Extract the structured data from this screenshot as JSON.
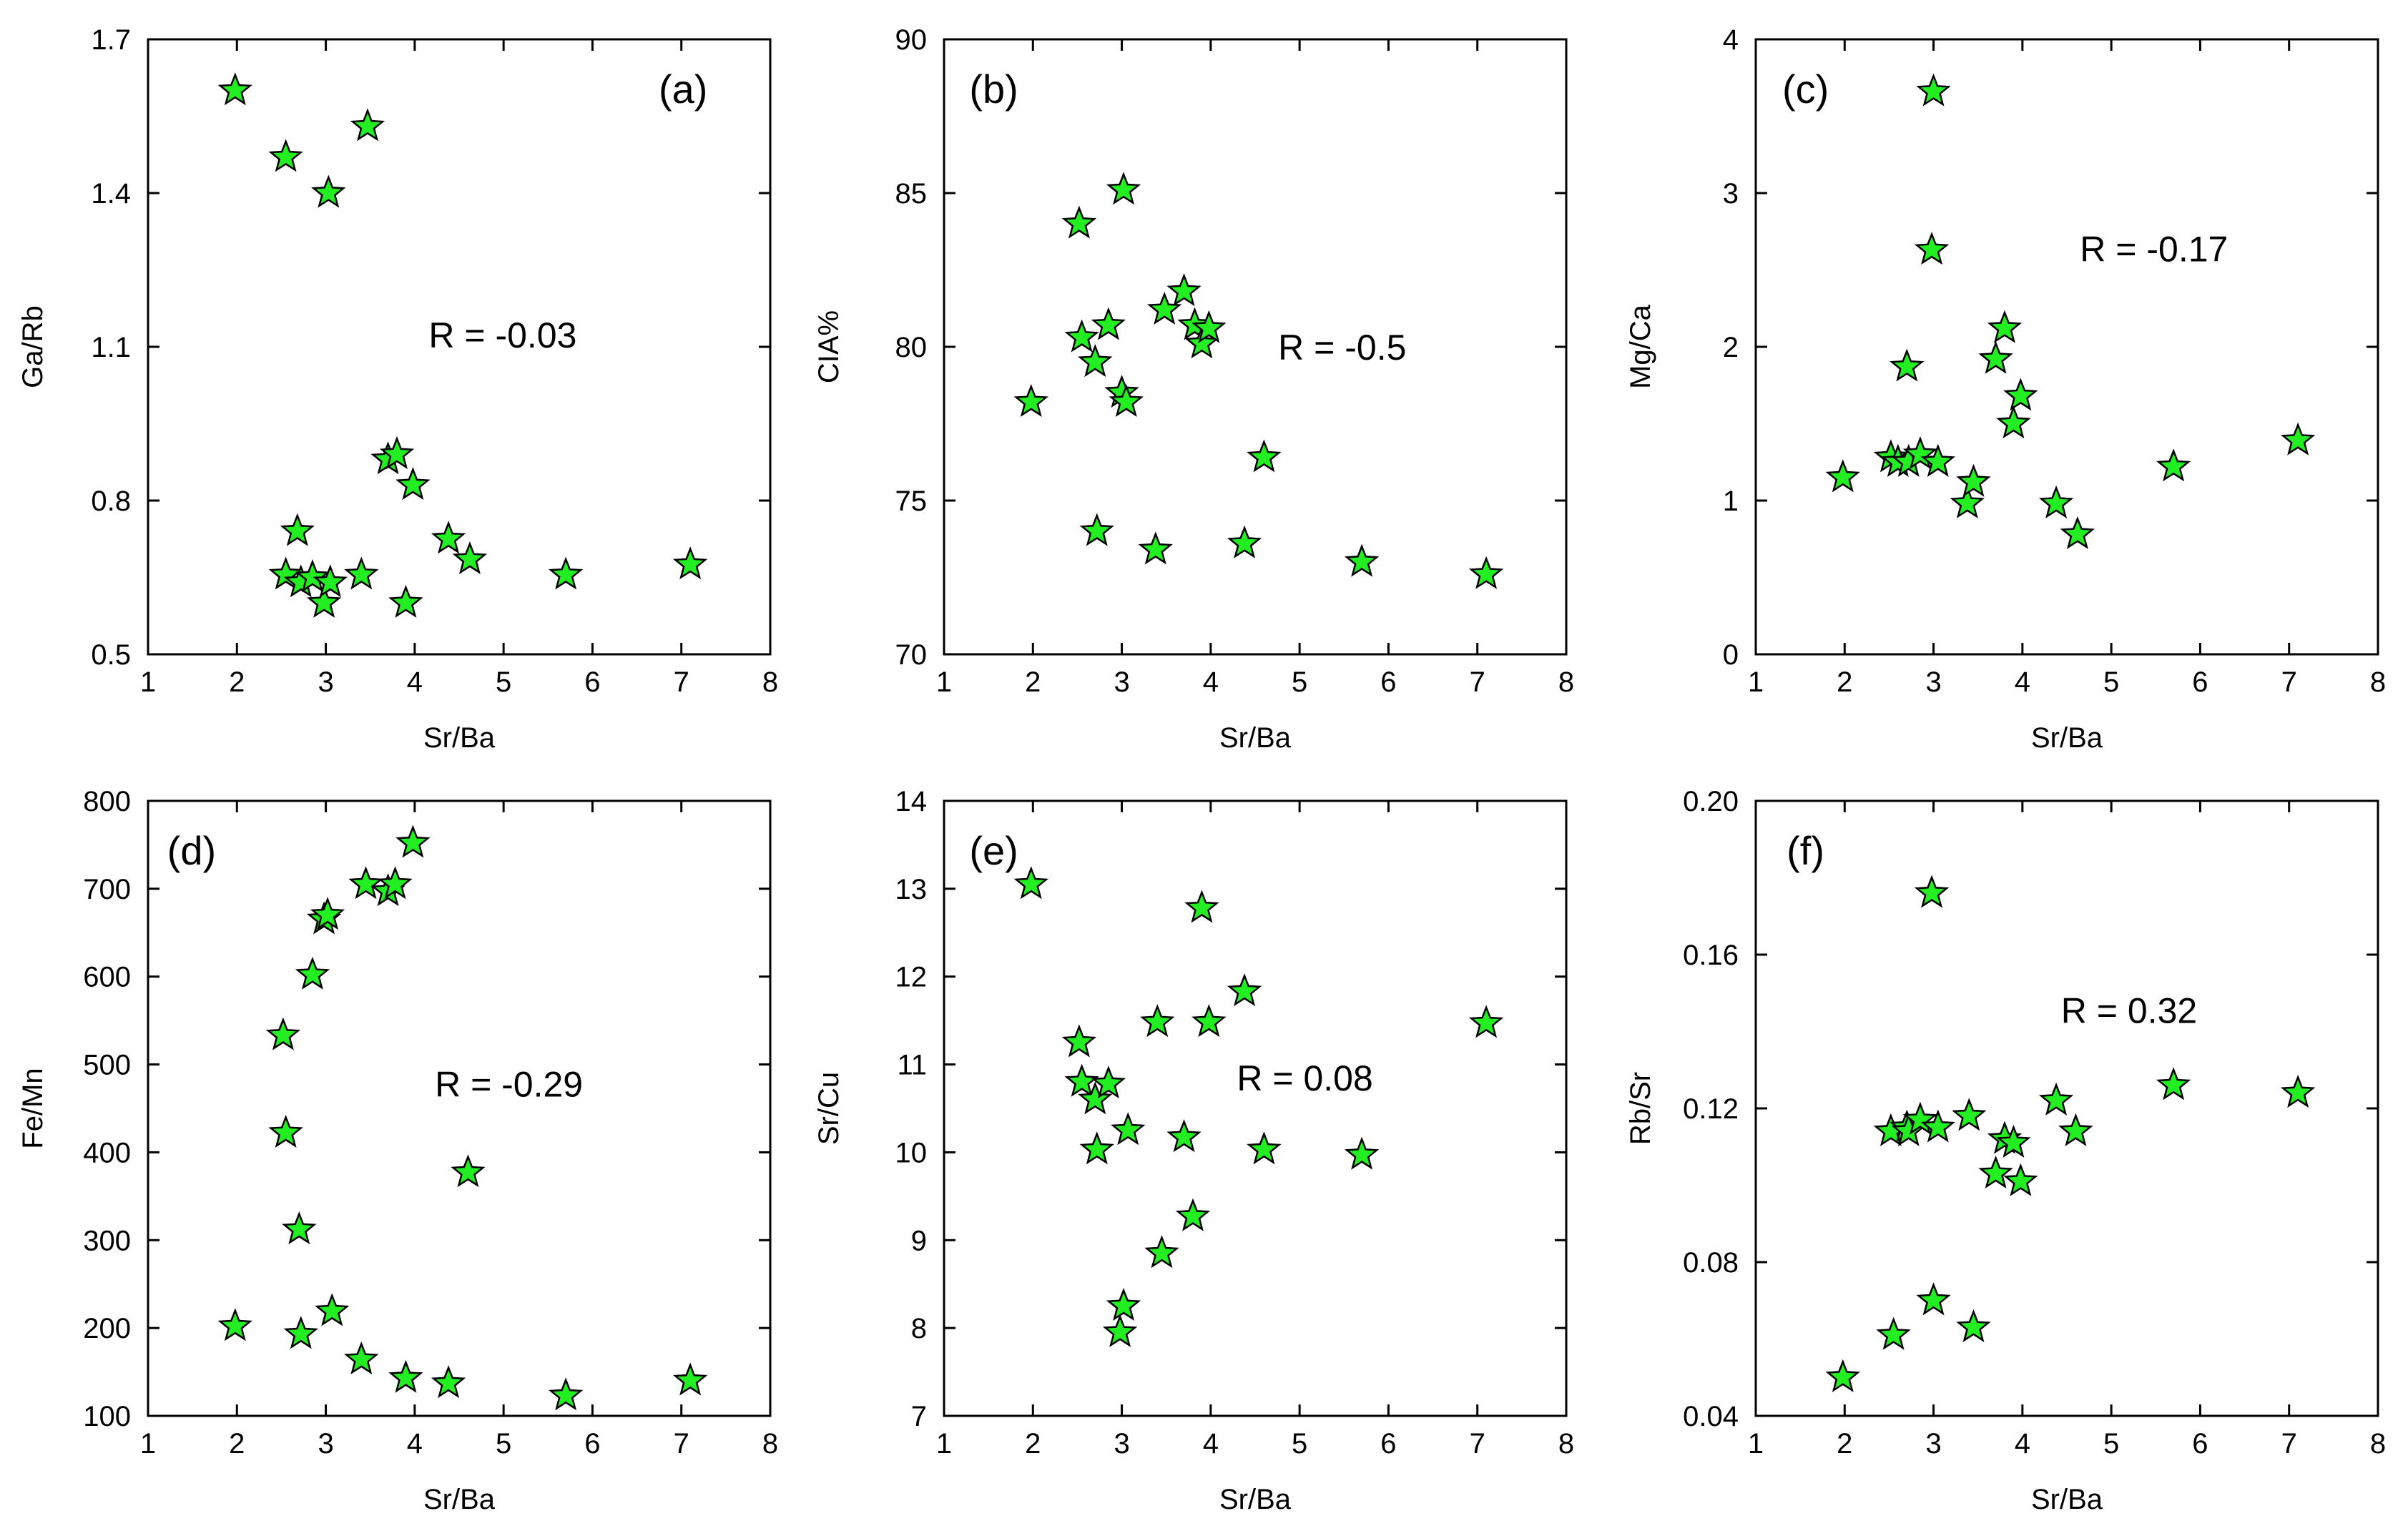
{
  "figure": {
    "marker_color": "#22ee22",
    "marker_shape": "star-icon"
  },
  "chart_data": [
    {
      "id": "a",
      "type": "scatter",
      "panel_label": "(a)",
      "xlabel": "Sr/Ba",
      "ylabel": "Ga/Rb",
      "xlim": [
        1,
        8
      ],
      "ylim": [
        0.5,
        1.7
      ],
      "xticks": [
        1,
        2,
        3,
        4,
        5,
        6,
        7,
        8
      ],
      "yticks": [
        0.5,
        0.8,
        1.1,
        1.4,
        1.7
      ],
      "xtick_labels": [
        "1",
        "2",
        "3",
        "4",
        "5",
        "6",
        "7",
        "8"
      ],
      "ytick_labels": [
        "0.5",
        "0.8",
        "1.1",
        "1.4",
        "1.7"
      ],
      "annotation": "R = -0.03",
      "points": [
        {
          "x": 1.98,
          "y": 1.6
        },
        {
          "x": 2.55,
          "y": 1.47
        },
        {
          "x": 3.03,
          "y": 1.4
        },
        {
          "x": 3.47,
          "y": 1.53
        },
        {
          "x": 2.55,
          "y": 0.655
        },
        {
          "x": 2.68,
          "y": 0.74
        },
        {
          "x": 2.72,
          "y": 0.64
        },
        {
          "x": 2.85,
          "y": 0.65
        },
        {
          "x": 2.98,
          "y": 0.6
        },
        {
          "x": 3.05,
          "y": 0.64
        },
        {
          "x": 3.4,
          "y": 0.655
        },
        {
          "x": 3.7,
          "y": 0.88
        },
        {
          "x": 3.8,
          "y": 0.89
        },
        {
          "x": 3.9,
          "y": 0.6
        },
        {
          "x": 3.98,
          "y": 0.83
        },
        {
          "x": 4.38,
          "y": 0.725
        },
        {
          "x": 4.62,
          "y": 0.685
        },
        {
          "x": 5.7,
          "y": 0.655
        },
        {
          "x": 7.1,
          "y": 0.675
        }
      ]
    },
    {
      "id": "b",
      "type": "scatter",
      "panel_label": "(b)",
      "xlabel": "Sr/Ba",
      "ylabel": "CIA%",
      "xlim": [
        1,
        8
      ],
      "ylim": [
        70,
        90
      ],
      "xticks": [
        1,
        2,
        3,
        4,
        5,
        6,
        7,
        8
      ],
      "yticks": [
        70,
        75,
        80,
        85,
        90
      ],
      "xtick_labels": [
        "1",
        "2",
        "3",
        "4",
        "5",
        "6",
        "7",
        "8"
      ],
      "ytick_labels": [
        "70",
        "75",
        "80",
        "85",
        "90"
      ],
      "annotation": "R = -0.5",
      "points": [
        {
          "x": 1.98,
          "y": 78.2
        },
        {
          "x": 2.52,
          "y": 84.0
        },
        {
          "x": 2.55,
          "y": 80.3
        },
        {
          "x": 2.7,
          "y": 79.5
        },
        {
          "x": 2.72,
          "y": 74.0
        },
        {
          "x": 2.85,
          "y": 80.7
        },
        {
          "x": 3.0,
          "y": 78.5
        },
        {
          "x": 3.02,
          "y": 85.1
        },
        {
          "x": 3.05,
          "y": 78.2
        },
        {
          "x": 3.38,
          "y": 73.4
        },
        {
          "x": 3.48,
          "y": 81.2
        },
        {
          "x": 3.7,
          "y": 81.8
        },
        {
          "x": 3.82,
          "y": 80.7
        },
        {
          "x": 3.9,
          "y": 80.1
        },
        {
          "x": 3.98,
          "y": 80.6
        },
        {
          "x": 4.38,
          "y": 73.6
        },
        {
          "x": 4.6,
          "y": 76.4
        },
        {
          "x": 5.7,
          "y": 73.0
        },
        {
          "x": 7.1,
          "y": 72.6
        }
      ]
    },
    {
      "id": "c",
      "type": "scatter",
      "panel_label": "(c)",
      "xlabel": "Sr/Ba",
      "ylabel": "Mg/Ca",
      "xlim": [
        1,
        8
      ],
      "ylim": [
        0,
        4
      ],
      "xticks": [
        1,
        2,
        3,
        4,
        5,
        6,
        7,
        8
      ],
      "yticks": [
        0,
        1,
        2,
        3,
        4
      ],
      "xtick_labels": [
        "1",
        "2",
        "3",
        "4",
        "5",
        "6",
        "7",
        "8"
      ],
      "ytick_labels": [
        "0",
        "1",
        "2",
        "3",
        "4"
      ],
      "annotation": "R = -0.17",
      "points": [
        {
          "x": 1.98,
          "y": 1.15
        },
        {
          "x": 2.52,
          "y": 1.28
        },
        {
          "x": 2.6,
          "y": 1.25
        },
        {
          "x": 2.7,
          "y": 1.87
        },
        {
          "x": 2.72,
          "y": 1.25
        },
        {
          "x": 2.85,
          "y": 1.3
        },
        {
          "x": 2.98,
          "y": 2.63
        },
        {
          "x": 3.0,
          "y": 3.66
        },
        {
          "x": 3.05,
          "y": 1.25
        },
        {
          "x": 3.38,
          "y": 0.98
        },
        {
          "x": 3.45,
          "y": 1.12
        },
        {
          "x": 3.7,
          "y": 1.92
        },
        {
          "x": 3.8,
          "y": 2.12
        },
        {
          "x": 3.9,
          "y": 1.5
        },
        {
          "x": 3.98,
          "y": 1.68
        },
        {
          "x": 4.38,
          "y": 0.98
        },
        {
          "x": 4.62,
          "y": 0.78
        },
        {
          "x": 5.7,
          "y": 1.22
        },
        {
          "x": 7.1,
          "y": 1.39
        }
      ]
    },
    {
      "id": "d",
      "type": "scatter",
      "panel_label": "(d)",
      "xlabel": "Sr/Ba",
      "ylabel": "Fe/Mn",
      "xlim": [
        1,
        8
      ],
      "ylim": [
        100,
        800
      ],
      "xticks": [
        1,
        2,
        3,
        4,
        5,
        6,
        7,
        8
      ],
      "yticks": [
        100,
        200,
        300,
        400,
        500,
        600,
        700,
        800
      ],
      "xtick_labels": [
        "1",
        "2",
        "3",
        "4",
        "5",
        "6",
        "7",
        "8"
      ],
      "ytick_labels": [
        "100",
        "200",
        "300",
        "400",
        "500",
        "600",
        "700",
        "800"
      ],
      "annotation": "R = -0.29",
      "points": [
        {
          "x": 1.98,
          "y": 202
        },
        {
          "x": 2.52,
          "y": 533
        },
        {
          "x": 2.55,
          "y": 422
        },
        {
          "x": 2.7,
          "y": 312
        },
        {
          "x": 2.72,
          "y": 193
        },
        {
          "x": 2.85,
          "y": 602
        },
        {
          "x": 2.98,
          "y": 665
        },
        {
          "x": 3.02,
          "y": 670
        },
        {
          "x": 3.07,
          "y": 219
        },
        {
          "x": 3.4,
          "y": 164
        },
        {
          "x": 3.45,
          "y": 705
        },
        {
          "x": 3.7,
          "y": 697
        },
        {
          "x": 3.78,
          "y": 705
        },
        {
          "x": 3.9,
          "y": 143
        },
        {
          "x": 3.98,
          "y": 752
        },
        {
          "x": 4.38,
          "y": 137
        },
        {
          "x": 4.6,
          "y": 377
        },
        {
          "x": 5.7,
          "y": 123
        },
        {
          "x": 7.1,
          "y": 140
        }
      ]
    },
    {
      "id": "e",
      "type": "scatter",
      "panel_label": "(e)",
      "xlabel": "Sr/Ba",
      "ylabel": "Sr/Cu",
      "xlim": [
        1,
        8
      ],
      "ylim": [
        7,
        14
      ],
      "xticks": [
        1,
        2,
        3,
        4,
        5,
        6,
        7,
        8
      ],
      "yticks": [
        7,
        8,
        9,
        10,
        11,
        12,
        13,
        14
      ],
      "xtick_labels": [
        "1",
        "2",
        "3",
        "4",
        "5",
        "6",
        "7",
        "8"
      ],
      "ytick_labels": [
        "7",
        "8",
        "9",
        "10",
        "11",
        "12",
        "13",
        "14"
      ],
      "annotation": "R = 0.08",
      "points": [
        {
          "x": 1.98,
          "y": 13.05
        },
        {
          "x": 2.52,
          "y": 11.25
        },
        {
          "x": 2.55,
          "y": 10.8
        },
        {
          "x": 2.7,
          "y": 10.6
        },
        {
          "x": 2.72,
          "y": 10.03
        },
        {
          "x": 2.85,
          "y": 10.78
        },
        {
          "x": 2.98,
          "y": 7.95
        },
        {
          "x": 3.02,
          "y": 8.25
        },
        {
          "x": 3.07,
          "y": 10.25
        },
        {
          "x": 3.4,
          "y": 11.48
        },
        {
          "x": 3.45,
          "y": 8.85
        },
        {
          "x": 3.7,
          "y": 10.17
        },
        {
          "x": 3.8,
          "y": 9.27
        },
        {
          "x": 3.9,
          "y": 12.78
        },
        {
          "x": 3.98,
          "y": 11.48
        },
        {
          "x": 4.38,
          "y": 11.83
        },
        {
          "x": 4.6,
          "y": 10.03
        },
        {
          "x": 5.7,
          "y": 9.97
        },
        {
          "x": 7.1,
          "y": 11.47
        }
      ]
    },
    {
      "id": "f",
      "type": "scatter",
      "panel_label": "(f)",
      "xlabel": "Sr/Ba",
      "ylabel": "Rb/Sr",
      "xlim": [
        1,
        8
      ],
      "ylim": [
        0.04,
        0.2
      ],
      "xticks": [
        1,
        2,
        3,
        4,
        5,
        6,
        7,
        8
      ],
      "yticks": [
        0.04,
        0.08,
        0.12,
        0.16,
        0.2
      ],
      "xtick_labels": [
        "1",
        "2",
        "3",
        "4",
        "5",
        "6",
        "7",
        "8"
      ],
      "ytick_labels": [
        "0.04",
        "0.08",
        "0.12",
        "0.16",
        "0.20"
      ],
      "annotation": "R = 0.32",
      "points": [
        {
          "x": 1.98,
          "y": 0.05
        },
        {
          "x": 2.52,
          "y": 0.114
        },
        {
          "x": 2.55,
          "y": 0.061
        },
        {
          "x": 2.7,
          "y": 0.115
        },
        {
          "x": 2.72,
          "y": 0.114
        },
        {
          "x": 2.85,
          "y": 0.117
        },
        {
          "x": 2.98,
          "y": 0.176
        },
        {
          "x": 3.0,
          "y": 0.07
        },
        {
          "x": 3.05,
          "y": 0.115
        },
        {
          "x": 3.4,
          "y": 0.118
        },
        {
          "x": 3.45,
          "y": 0.063
        },
        {
          "x": 3.7,
          "y": 0.103
        },
        {
          "x": 3.8,
          "y": 0.112
        },
        {
          "x": 3.9,
          "y": 0.111
        },
        {
          "x": 3.98,
          "y": 0.101
        },
        {
          "x": 4.38,
          "y": 0.122
        },
        {
          "x": 4.6,
          "y": 0.114
        },
        {
          "x": 5.7,
          "y": 0.126
        },
        {
          "x": 7.1,
          "y": 0.124
        }
      ]
    }
  ]
}
